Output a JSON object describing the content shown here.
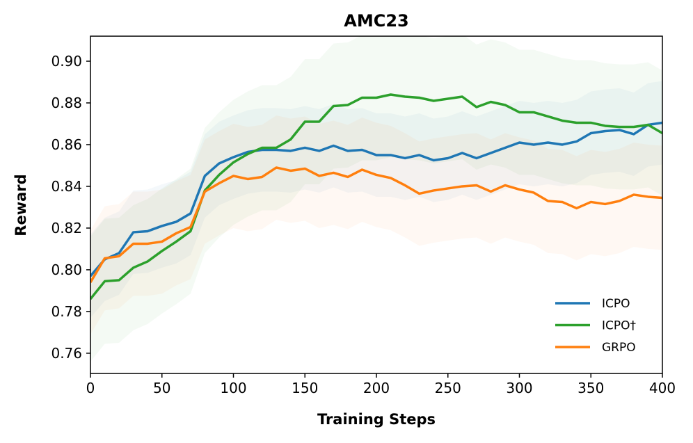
{
  "chart_data": {
    "type": "line",
    "title": "AMC23",
    "xlabel": "Training Steps",
    "ylabel": "Reward",
    "xlim": [
      0,
      400
    ],
    "ylim": [
      0.7503,
      0.912
    ],
    "xticks": [
      0,
      50,
      100,
      150,
      200,
      250,
      300,
      350,
      400
    ],
    "yticks": [
      0.76,
      0.78,
      0.8,
      0.82,
      0.84,
      0.86,
      0.88,
      0.9
    ],
    "ytick_labels": [
      "0.76",
      "0.78",
      "0.80",
      "0.82",
      "0.84",
      "0.86",
      "0.88",
      "0.90"
    ],
    "grid": false,
    "legend_position": "bottom-right",
    "x": [
      0,
      10,
      20,
      30,
      40,
      50,
      60,
      70,
      80,
      90,
      100,
      110,
      120,
      130,
      140,
      150,
      160,
      170,
      180,
      190,
      200,
      210,
      220,
      230,
      240,
      250,
      260,
      270,
      280,
      290,
      300,
      310,
      320,
      330,
      340,
      350,
      360,
      370,
      380,
      390,
      400
    ],
    "series": [
      {
        "name": "ICPO",
        "color": "#1f77b4",
        "band_halfwidth": 0.02,
        "values": [
          0.797,
          0.805,
          0.808,
          0.818,
          0.8185,
          0.821,
          0.823,
          0.827,
          0.845,
          0.851,
          0.854,
          0.8565,
          0.8575,
          0.8575,
          0.857,
          0.8585,
          0.857,
          0.8595,
          0.857,
          0.8575,
          0.855,
          0.855,
          0.8535,
          0.855,
          0.8525,
          0.8535,
          0.856,
          0.8535,
          0.856,
          0.8585,
          0.861,
          0.86,
          0.861,
          0.86,
          0.8615,
          0.8655,
          0.8665,
          0.867,
          0.865,
          0.8695,
          0.8705
        ]
      },
      {
        "name": "ICPO†",
        "color": "#2ca02c",
        "band_halfwidth": 0.03,
        "values": [
          0.786,
          0.7945,
          0.795,
          0.801,
          0.804,
          0.809,
          0.8135,
          0.8185,
          0.838,
          0.8455,
          0.8515,
          0.8555,
          0.8585,
          0.8585,
          0.8625,
          0.871,
          0.871,
          0.8785,
          0.879,
          0.8825,
          0.8825,
          0.884,
          0.883,
          0.8825,
          0.881,
          0.882,
          0.883,
          0.878,
          0.8805,
          0.879,
          0.8755,
          0.8755,
          0.8735,
          0.8715,
          0.8705,
          0.8705,
          0.869,
          0.8685,
          0.8685,
          0.8695,
          0.8655
        ]
      },
      {
        "name": "GRPO",
        "color": "#ff7f0e",
        "band_halfwidth": 0.025,
        "values": [
          0.794,
          0.8055,
          0.8065,
          0.8125,
          0.8125,
          0.8135,
          0.8175,
          0.8205,
          0.8375,
          0.8415,
          0.845,
          0.8435,
          0.8445,
          0.849,
          0.8475,
          0.8485,
          0.845,
          0.8465,
          0.8445,
          0.848,
          0.8455,
          0.844,
          0.8405,
          0.8365,
          0.838,
          0.839,
          0.84,
          0.8405,
          0.8375,
          0.8405,
          0.8385,
          0.837,
          0.833,
          0.8325,
          0.8295,
          0.8325,
          0.8315,
          0.833,
          0.836,
          0.835,
          0.8345
        ]
      }
    ]
  }
}
